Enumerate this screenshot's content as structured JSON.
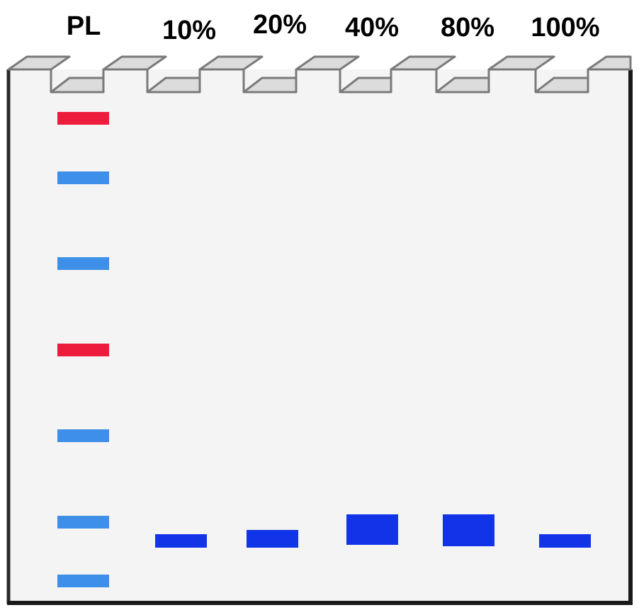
{
  "lanes": [
    {
      "label": "PL"
    },
    {
      "label": "10%"
    },
    {
      "label": "20%"
    },
    {
      "label": "40%"
    },
    {
      "label": "80%"
    },
    {
      "label": "100%"
    }
  ],
  "colors": {
    "gel_fill": "#f4f4f4",
    "gel_border": "#1a1a1a",
    "comb_fill": "#dcdcdc",
    "comb_stroke": "#7a7a7a",
    "ladder_marker": "#ed1c3c",
    "ladder_standard": "#3d8fe8",
    "sample_band": "#1234e8"
  },
  "ladder_bands": [
    {
      "kind": "marker",
      "color": "#ed1c3c"
    },
    {
      "kind": "standard",
      "color": "#3d8fe8"
    },
    {
      "kind": "standard",
      "color": "#3d8fe8"
    },
    {
      "kind": "marker",
      "color": "#ed1c3c"
    },
    {
      "kind": "standard",
      "color": "#3d8fe8"
    },
    {
      "kind": "standard",
      "color": "#3d8fe8"
    },
    {
      "kind": "standard",
      "color": "#3d8fe8"
    }
  ],
  "sample_bands": [
    {
      "lane": "10%",
      "intensity": "faint"
    },
    {
      "lane": "20%",
      "intensity": "medium"
    },
    {
      "lane": "40%",
      "intensity": "strong"
    },
    {
      "lane": "80%",
      "intensity": "strong"
    },
    {
      "lane": "100%",
      "intensity": "faint"
    }
  ]
}
